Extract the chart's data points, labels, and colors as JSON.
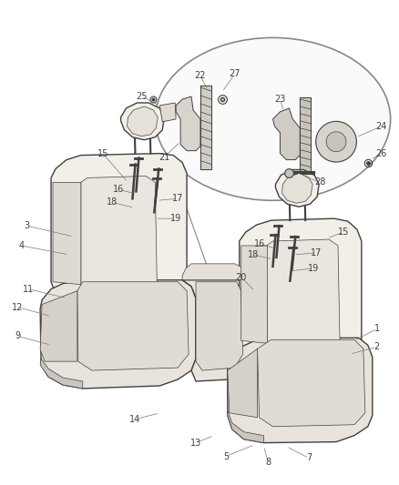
{
  "bg_color": "#ffffff",
  "line_color": "#404040",
  "label_color": "#404040",
  "label_fontsize": 7.0,
  "seat_fill": "#f2efe9",
  "seat_fill2": "#e8e4dc",
  "seat_stripe": "#d8d4cc",
  "ellipse_fill": "#fafafa",
  "ellipse_edge": "#888888"
}
